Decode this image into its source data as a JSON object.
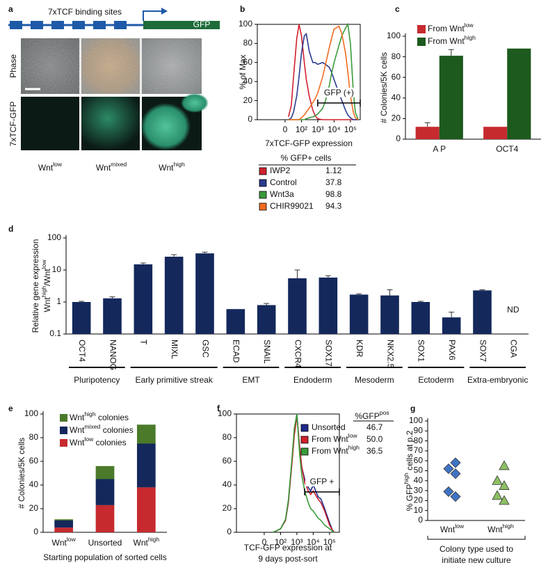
{
  "panel_a": {
    "panel": "a",
    "construct_label": "7xTCF binding sites",
    "reporter": "GFP",
    "row_labels": [
      "Phase",
      "7xTCF-GFP"
    ],
    "column_labels": [
      [
        "Wnt",
        "low"
      ],
      [
        "Wnt",
        "mixed"
      ],
      [
        "Wnt",
        "high"
      ]
    ]
  },
  "chart_data": [
    {
      "panel": "b",
      "type": "line",
      "xscale": "biexponential",
      "ylabel": "% of Max",
      "xlabel": "7xTCF-GFP expression",
      "x": [
        10,
        20,
        30,
        50,
        70,
        100,
        150,
        200,
        300,
        500,
        700,
        1000,
        2000,
        3000,
        5000,
        7000,
        10000,
        20000,
        30000,
        50000,
        70000,
        100000,
        150000,
        200000,
        300000
      ],
      "xlim": [
        -500,
        400000
      ],
      "xticks": [
        0,
        {
          "value": 100,
          "label": "10²"
        },
        {
          "value": 1000,
          "label": "10³"
        },
        {
          "value": 10000,
          "label": "10⁴"
        },
        {
          "value": 100000,
          "label": "10⁵"
        }
      ],
      "ylim": [
        0,
        100
      ],
      "yticks": [
        0,
        20,
        40,
        60,
        80,
        100
      ],
      "annotation": {
        "text": "GFP (+)",
        "range": [
          1000,
          400000
        ]
      },
      "legend_title": "% GFP+ cells",
      "series": [
        {
          "name": "IWP2",
          "color": "#d0202e",
          "gfp_positive": 1.12,
          "values": [
            3,
            15,
            45,
            85,
            100,
            88,
            60,
            42,
            25,
            10,
            4,
            1,
            0,
            0,
            0,
            0,
            0,
            0,
            0,
            0,
            0,
            0,
            0,
            0,
            0
          ]
        },
        {
          "name": "Control",
          "color": "#2b3a8f",
          "gfp_positive": 37.8,
          "values": [
            0,
            2,
            8,
            25,
            45,
            70,
            88,
            90,
            72,
            60,
            60,
            58,
            60,
            58,
            55,
            50,
            42,
            28,
            20,
            10,
            5,
            2,
            0,
            0,
            0
          ]
        },
        {
          "name": "Wnt3a",
          "color": "#3a9a3a",
          "gfp_positive": 98.8,
          "values": [
            0,
            0,
            0,
            0,
            0,
            0,
            0,
            1,
            2,
            3,
            4,
            6,
            12,
            20,
            35,
            48,
            60,
            78,
            88,
            96,
            100,
            80,
            30,
            8,
            0
          ]
        },
        {
          "name": "CHIR99021",
          "color": "#f26b21",
          "gfp_positive": 94.3,
          "values": [
            0,
            0,
            0,
            0,
            0,
            2,
            5,
            8,
            12,
            18,
            22,
            28,
            45,
            58,
            75,
            85,
            95,
            98,
            90,
            70,
            50,
            25,
            8,
            2,
            0
          ]
        }
      ]
    },
    {
      "panel": "c",
      "type": "bar",
      "ylabel": "# Colonies/5K cells",
      "categories": [
        "A P",
        "OCT4"
      ],
      "ylim": [
        0,
        100
      ],
      "yticks": [
        0,
        20,
        40,
        60,
        80,
        100
      ],
      "series": [
        {
          "name": [
            "From Wnt",
            "low"
          ],
          "color": "#c62a2f",
          "values": [
            12,
            12
          ],
          "errors": [
            4,
            null
          ]
        },
        {
          "name": [
            "From Wnt",
            "high"
          ],
          "color": "#1d5a1d",
          "values": [
            81,
            88
          ],
          "errors": [
            6,
            null
          ]
        }
      ]
    },
    {
      "panel": "d",
      "type": "bar",
      "yscale": "log",
      "ylabel_lines": [
        "Relative gene expression",
        [
          "Wnt",
          "high",
          "/Wnt",
          "low"
        ]
      ],
      "categories": [
        "OCT4",
        "NANOG",
        "T",
        "MIXL",
        "GSC",
        "ECAD",
        "SNAIL",
        "CXCR4",
        "SOX17",
        "KDR",
        "NKX2.5",
        "SOX1",
        "PAX6",
        "SOX7",
        "CGA"
      ],
      "values": [
        1.0,
        1.3,
        15,
        26,
        33,
        0.6,
        0.8,
        5.5,
        5.8,
        1.7,
        1.6,
        1.0,
        0.33,
        2.3,
        null
      ],
      "errors": [
        0.05,
        0.15,
        1.5,
        4,
        3,
        0,
        0.1,
        4.5,
        0.8,
        0.1,
        0.8,
        0.05,
        0.15,
        0.1,
        null
      ],
      "value_labels": [
        null,
        null,
        null,
        null,
        null,
        null,
        null,
        null,
        null,
        null,
        null,
        null,
        null,
        null,
        "ND"
      ],
      "color": "#14285c",
      "ylim": [
        0.1,
        100
      ],
      "yticks": [
        0.1,
        1,
        10,
        100
      ],
      "groups": [
        {
          "label": "Pluripotency",
          "n": 2
        },
        {
          "label": "Early primitive streak",
          "n": 3
        },
        {
          "label": "EMT",
          "n": 2
        },
        {
          "label": "Endoderm",
          "n": 2
        },
        {
          "label": "Mesoderm",
          "n": 2
        },
        {
          "label": "Ectoderm",
          "n": 2
        },
        {
          "label": "Extra-embryonic",
          "n": 2
        }
      ]
    },
    {
      "panel": "e",
      "type": "stacked_bar",
      "ylabel": "# Colonies/5K cells",
      "xlabel": "Starting population of sorted cells",
      "categories": [
        [
          "Wnt",
          "low"
        ],
        [
          "Unsorted"
        ],
        [
          "Wnt",
          "high"
        ]
      ],
      "ylim": [
        0,
        100
      ],
      "yticks": [
        0,
        20,
        40,
        60,
        80,
        100
      ],
      "series": [
        {
          "name": [
            "Wnt",
            "low",
            " colonies"
          ],
          "color": "#c62a2f",
          "values": [
            4,
            23,
            38
          ]
        },
        {
          "name": [
            "Wnt",
            "mixed",
            " colonies"
          ],
          "color": "#14285c",
          "values": [
            6,
            22,
            37
          ]
        },
        {
          "name": [
            "Wnt",
            "high",
            " colonies"
          ],
          "color": "#4a7a2a",
          "values": [
            1,
            11,
            16
          ]
        }
      ]
    },
    {
      "panel": "f",
      "type": "line",
      "xscale": "biexponential",
      "xlabel_lines": [
        "TCF-GFP expression at",
        "9 days post-sort"
      ],
      "x": [
        30,
        50,
        100,
        200,
        300,
        500,
        700,
        1000,
        1500,
        2000,
        3000,
        5000,
        7000,
        10000,
        20000,
        30000,
        50000,
        100000,
        150000,
        200000
      ],
      "xlim": [
        -500,
        400000
      ],
      "xticks": [
        0,
        {
          "value": 100,
          "label": "10²"
        },
        {
          "value": 1000,
          "label": "10³"
        },
        {
          "value": 10000,
          "label": "10⁴"
        },
        {
          "value": 100000,
          "label": "10⁵"
        }
      ],
      "ylim": [
        0,
        100
      ],
      "yticks": [
        0,
        20,
        40,
        60,
        80,
        100
      ],
      "annotation": {
        "text": "GFP +",
        "range": [
          3000,
          400000
        ]
      },
      "legend_title": [
        "%GFP",
        "pos"
      ],
      "series": [
        {
          "name": "Unsorted",
          "color": "#1d2a8a",
          "gfp_positive": 46.7,
          "values": [
            0,
            1,
            3,
            10,
            25,
            60,
            85,
            100,
            70,
            55,
            45,
            38,
            35,
            40,
            30,
            28,
            20,
            8,
            2,
            0
          ]
        },
        {
          "name": [
            "From Wnt",
            "low"
          ],
          "color": "#d0202e",
          "gfp_positive": {
            "value": 50,
            "label": "50.0"
          },
          "values": [
            0,
            1,
            3,
            10,
            25,
            58,
            82,
            98,
            72,
            55,
            42,
            35,
            32,
            35,
            28,
            25,
            18,
            6,
            2,
            0
          ]
        },
        {
          "name": [
            "From Wnt",
            "high"
          ],
          "color": "#3a9a3a",
          "gfp_positive": 36.5,
          "values": [
            0,
            1,
            3,
            11,
            27,
            62,
            88,
            100,
            65,
            48,
            35,
            25,
            20,
            18,
            12,
            10,
            6,
            3,
            1,
            0
          ]
        }
      ]
    },
    {
      "panel": "g",
      "type": "scatter",
      "ylabel": [
        "% GFP",
        "high",
        " cells at p.2"
      ],
      "xlabel_lines": [
        "Colony type used to",
        "initiate new culture"
      ],
      "categories": [
        [
          "Wnt",
          "low"
        ],
        [
          "Wnt",
          "high"
        ]
      ],
      "ylim": [
        0,
        100
      ],
      "yticks": [
        0,
        10,
        20,
        30,
        40,
        50,
        60,
        70,
        80,
        90,
        100
      ],
      "series": [
        {
          "marker": "diamond",
          "color": "#3f74c4",
          "values": [
            58,
            52,
            47,
            29,
            24
          ]
        },
        {
          "marker": "triangle",
          "color": "#8cc063",
          "values": [
            55,
            40,
            35,
            25,
            20
          ]
        }
      ]
    }
  ]
}
